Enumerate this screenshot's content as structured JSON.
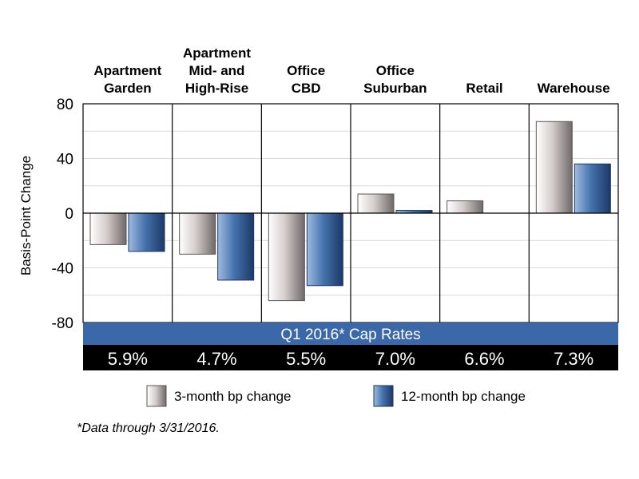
{
  "chart_data": {
    "type": "bar",
    "categories": [
      [
        "Apartment",
        "Garden"
      ],
      [
        "Apartment",
        "Mid- and",
        "High-Rise"
      ],
      [
        "Office",
        "CBD"
      ],
      [
        "Office",
        "Suburban"
      ],
      [
        "Retail"
      ],
      [
        "Warehouse"
      ]
    ],
    "series": [
      {
        "name": "3-month bp change",
        "values": [
          -23,
          -30,
          -64,
          14,
          9,
          67
        ]
      },
      {
        "name": "12-month bp change",
        "values": [
          -28,
          -49,
          -53,
          2,
          0,
          36
        ]
      }
    ],
    "ylabel": "Basis-Point Change",
    "ylim": [
      -80,
      80
    ],
    "yticks": [
      80,
      40,
      0,
      -40,
      -80
    ],
    "grid": true,
    "legend": "bottom",
    "colors": {
      "three_month": "#b9b1b0",
      "twelve_month": "#3d6aa6",
      "banner": "#3a68a8",
      "rates_band": "#000000"
    },
    "banner_label": "Q1 2016* Cap Rates",
    "cap_rates": [
      "5.9%",
      "4.7%",
      "5.5%",
      "7.0%",
      "6.6%",
      "7.3%"
    ]
  },
  "footnote": "*Data through 3/31/2016."
}
